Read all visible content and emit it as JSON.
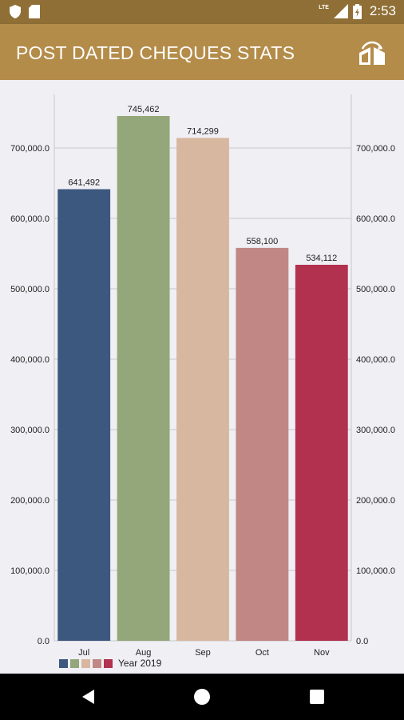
{
  "status_bar": {
    "time": "2:53",
    "network_label": "LTE",
    "icons": [
      "shield-icon",
      "sim-card-icon",
      "signal-icon",
      "battery-icon"
    ]
  },
  "app_bar": {
    "title": "POST DATED CHEQUES STATS",
    "action_icon": "swap-chart-icon"
  },
  "colors": {
    "app_bar": "#b48c4a",
    "status_bar": "#8f6f36",
    "chart_bg": "#efeff4",
    "grid": "#c8c8cc"
  },
  "chart_data": {
    "type": "bar",
    "categories": [
      "Jul",
      "Aug",
      "Sep",
      "Oct",
      "Nov"
    ],
    "series": [
      {
        "name": "Year 2019",
        "values": [
          641492,
          745462,
          714299,
          558100,
          534112
        ],
        "value_labels": [
          "641,492",
          "745,462",
          "714,299",
          "558,100",
          "534,112"
        ],
        "colors": [
          "#3d587f",
          "#94a77b",
          "#d8b7a0",
          "#c08785",
          "#b2314e"
        ]
      }
    ],
    "ylim": [
      0,
      700000
    ],
    "yticks": [
      0,
      100000,
      200000,
      300000,
      400000,
      500000,
      600000,
      700000
    ],
    "ytick_labels": [
      "0.0",
      "100,000.0",
      "200,000.0",
      "300,000.0",
      "400,000.0",
      "500,000.0",
      "600,000.0",
      "700,000.0"
    ],
    "grid": true,
    "dual_y_axis": true,
    "legend": {
      "position": "bottom-left",
      "label": "Year 2019"
    }
  },
  "nav_bar": {
    "icons": [
      "back-icon",
      "home-icon",
      "recents-icon"
    ]
  }
}
